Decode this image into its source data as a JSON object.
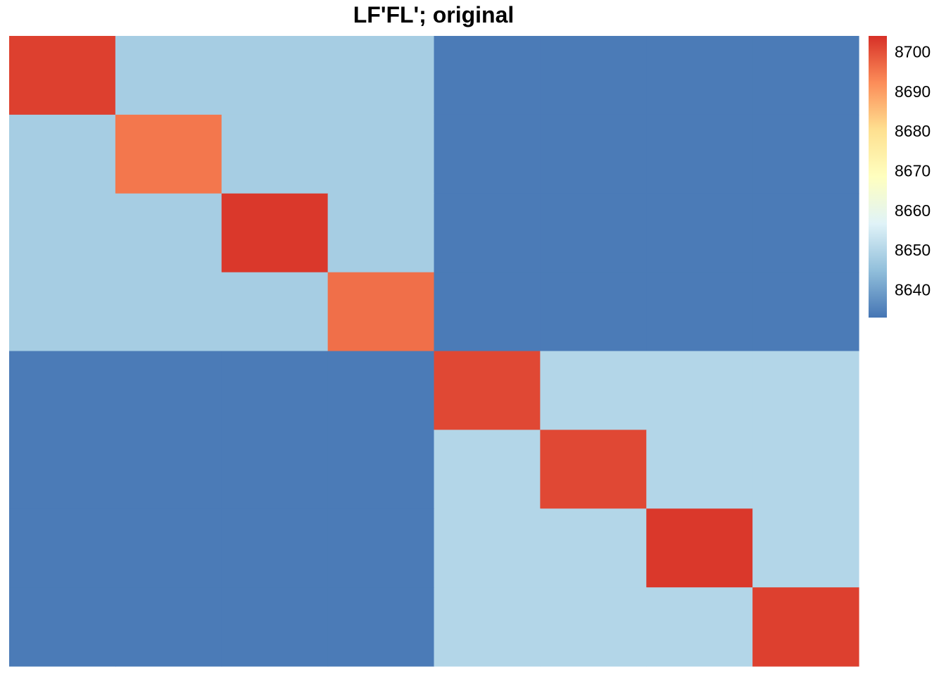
{
  "chart_data": {
    "type": "heatmap",
    "title": "LF'FL'; original",
    "xlabel": "",
    "ylabel": "",
    "rows": 8,
    "cols": 8,
    "values": [
      [
        8702,
        8648,
        8648,
        8648,
        8634,
        8634,
        8634,
        8634
      ],
      [
        8648,
        8695,
        8648,
        8648,
        8634,
        8634,
        8634,
        8634
      ],
      [
        8648,
        8648,
        8703,
        8648,
        8634,
        8634,
        8634,
        8634
      ],
      [
        8648,
        8648,
        8648,
        8696,
        8634,
        8634,
        8634,
        8634
      ],
      [
        8634,
        8634,
        8634,
        8634,
        8701,
        8650,
        8650,
        8650
      ],
      [
        8634,
        8634,
        8634,
        8634,
        8650,
        8701,
        8650,
        8650
      ],
      [
        8634,
        8634,
        8634,
        8634,
        8650,
        8650,
        8703,
        8650
      ],
      [
        8634,
        8634,
        8634,
        8634,
        8650,
        8650,
        8650,
        8702
      ]
    ],
    "colorbar": {
      "min": 8633,
      "max": 8704,
      "ticks": [
        8640,
        8650,
        8660,
        8670,
        8680,
        8690,
        8700
      ],
      "tick_labels": [
        "8640",
        "8650",
        "8660",
        "8670",
        "8680",
        "8690",
        "8700"
      ],
      "palette": [
        "#4575b4",
        "#91bfdb",
        "#e0f3f8",
        "#ffffbf",
        "#fee090",
        "#fc8d59",
        "#d73027"
      ],
      "low_color": "#4575b4",
      "high_color": "#d73027"
    },
    "legend_position": "right"
  }
}
